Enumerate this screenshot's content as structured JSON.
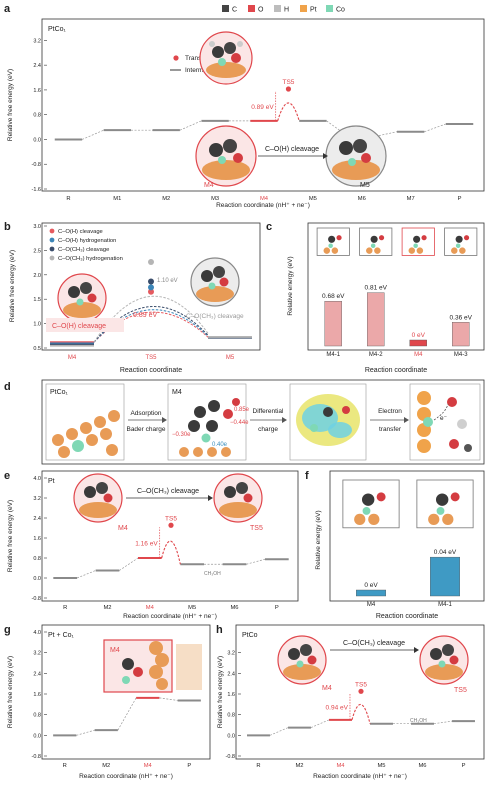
{
  "legend": {
    "elements": [
      {
        "label": "C",
        "color": "#444444"
      },
      {
        "label": "O",
        "color": "#e0474c"
      },
      {
        "label": "H",
        "color": "#bdbdbd"
      },
      {
        "label": "Pt",
        "color": "#f0a34a"
      },
      {
        "label": "Co",
        "color": "#7fd8b5"
      }
    ]
  },
  "chart_data": [
    {
      "panel": "a",
      "type": "line",
      "title": "PtCo₁",
      "ylabel": "Relative free energy (eV)",
      "xlabel": "Reaction coordinate (nH⁺ + ne⁻)",
      "ylim": [
        -1.6,
        3.6
      ],
      "yticks": [
        -1.6,
        -0.8,
        0,
        0.8,
        1.6,
        2.4,
        3.2
      ],
      "categories": [
        "R",
        "M1",
        "M2",
        "M3",
        "M4",
        "M5",
        "M6",
        "M7",
        "P"
      ],
      "values": [
        0.0,
        0.3,
        0.3,
        0.6,
        0.6,
        0.6,
        0.1,
        0.25,
        0.5
      ],
      "transition_state": {
        "label": "TS5",
        "value": 1.5,
        "barrier_label": "0.89 eV"
      },
      "legend_entries": [
        "Transition state",
        "Intermediate"
      ],
      "annotations": [
        "TS5",
        "C–O(H) cleavage",
        "M4",
        "M5"
      ],
      "highlight_color": "#e0474c"
    },
    {
      "panel": "b",
      "type": "line",
      "ylabel": "Relative free energy (eV)",
      "xlabel": "Reaction coordinate",
      "ylim": [
        0.5,
        3.0
      ],
      "yticks": [
        0.5,
        1.0,
        1.5,
        2.0,
        2.5,
        3.0
      ],
      "categories": [
        "M4",
        "TS5",
        "M5"
      ],
      "series": [
        {
          "name": "C–O(H) cleavage",
          "values": [
            0.62,
            1.51,
            0.72
          ],
          "color": "#e55a5f"
        },
        {
          "name": "C–O(H) hydrogenation",
          "values": [
            0.62,
            1.6,
            0.74
          ],
          "color": "#3c86b8"
        },
        {
          "name": "C–O(CH₃) cleavage",
          "values": [
            0.62,
            1.72,
            0.76
          ],
          "color": "#3a4d6b"
        },
        {
          "name": "C–O(CH₃) hydrogenation",
          "values": [
            0.62,
            2.12,
            0.8
          ],
          "color": "#b5b5b5"
        }
      ],
      "annotations": [
        "C–O(H) cleavage",
        "C–O(CH₃) cleavage",
        "0.89 eV",
        "1.10 eV"
      ]
    },
    {
      "panel": "c",
      "type": "bar",
      "ylabel": "Relative energy (eV)",
      "xlabel": "Reaction coordinate",
      "categories": [
        "M4-1",
        "M4-2",
        "M4",
        "M4-3"
      ],
      "values": [
        0.68,
        0.81,
        0.0,
        0.36
      ],
      "value_labels": [
        "0.68 eV",
        "0.81 eV",
        "0 eV",
        "0.36 eV"
      ],
      "colors": [
        "#eba8a9",
        "#eba8a9",
        "#e0474c",
        "#eba8a9"
      ]
    },
    {
      "panel": "e",
      "type": "line",
      "title": "Pt",
      "ylabel": "Relative free energy (eV)",
      "xlabel": "Reaction coordinate (nH⁺ + ne⁻)",
      "ylim": [
        -0.8,
        4.0
      ],
      "yticks": [
        -0.8,
        0,
        0.8,
        1.6,
        2.4,
        3.2,
        4.0
      ],
      "categories": [
        "R",
        "M2",
        "M4",
        "M5",
        "M6",
        "P"
      ],
      "values": [
        0.0,
        0.3,
        0.8,
        0.55,
        0.55,
        0.75
      ],
      "transition_state": {
        "label": "TS5",
        "value": 1.95,
        "barrier_label": "1.16 eV"
      },
      "annotations": [
        "C–O(CH₃) cleavage",
        "M4",
        "TS5",
        "CH₃OH"
      ]
    },
    {
      "panel": "f",
      "type": "bar",
      "ylabel": "Relative energy (eV)",
      "xlabel": "Reaction coordinate",
      "categories": [
        "M4",
        "M4-1"
      ],
      "values": [
        0.0,
        0.04
      ],
      "value_labels": [
        "0 eV",
        "0.04 eV"
      ],
      "colors": [
        "#3f9ac4",
        "#3f9ac4"
      ]
    },
    {
      "panel": "g",
      "type": "line",
      "title": "Pt + Co₁",
      "ylabel": "Relative free energy (eV)",
      "xlabel": "Reaction coordinate (nH⁺ + ne⁻)",
      "ylim": [
        -0.8,
        4.0
      ],
      "yticks": [
        -0.8,
        0,
        0.8,
        1.6,
        2.4,
        3.2,
        4.0
      ],
      "categories": [
        "R",
        "M2",
        "M4",
        "P"
      ],
      "values": [
        0.0,
        0.2,
        1.45,
        1.35
      ],
      "annotations": [
        "M4"
      ]
    },
    {
      "panel": "h",
      "type": "line",
      "title": "PtCo",
      "ylabel": "Relative free energy (eV)",
      "xlabel": "Reaction coordinate (nH⁺ + ne⁻)",
      "ylim": [
        -0.8,
        4.0
      ],
      "yticks": [
        -0.8,
        0,
        0.8,
        1.6,
        2.4,
        3.2
      ],
      "categories": [
        "R",
        "M2",
        "M4",
        "M5",
        "M6",
        "P"
      ],
      "values": [
        0.0,
        0.3,
        0.6,
        0.45,
        0.45,
        0.55
      ],
      "transition_state": {
        "label": "TS5",
        "value": 1.55,
        "barrier_label": "0.94 eV"
      },
      "annotations": [
        "C–O(CH₃) cleavage",
        "M4",
        "TS5",
        "CH₃OH"
      ]
    }
  ],
  "panel_d": {
    "label": "d",
    "title": "PtCo₁",
    "state_label": "M4",
    "arrows": [
      {
        "top": "Adsorption",
        "bottom": "Bader charge"
      },
      {
        "top": "Differential",
        "bottom": "charge"
      },
      {
        "top": "Electron",
        "bottom": "transfer"
      }
    ],
    "charges": [
      "0.85e",
      "−0.44e",
      "−0.30e",
      "0.40e"
    ],
    "electron": "e⁻"
  }
}
